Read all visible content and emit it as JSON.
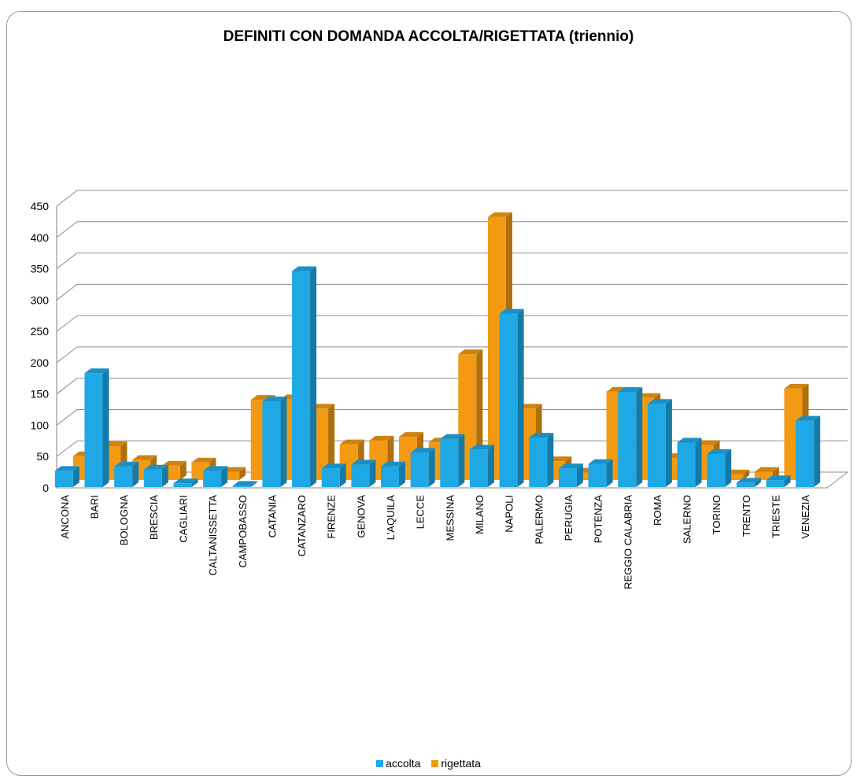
{
  "chart_data": {
    "type": "bar",
    "title": "DEFINITI CON DOMANDA ACCOLTA/RIGETTATA (triennio)",
    "xlabel": "",
    "ylabel": "",
    "ylim": [
      0,
      450
    ],
    "yticks": [
      0,
      50,
      100,
      150,
      200,
      250,
      300,
      350,
      400,
      450
    ],
    "grid": true,
    "legend_position": "bottom",
    "categories": [
      "ANCONA",
      "BARI",
      "BOLOGNA",
      "BRESCIA",
      "CAGLIARI",
      "CALTANISSETTA",
      "CAMPOBASSO",
      "CATANIA",
      "CATANZARO",
      "FIRENZE",
      "GENOVA",
      "L'AQUILA",
      "LECCE",
      "MESSINA",
      "MILANO",
      "NAPOLI",
      "PALERMO",
      "PERUGIA",
      "POTENZA",
      "REGGIO CALABRIA",
      "ROMA",
      "SALERNO",
      "TORINO",
      "TRENTO",
      "TRIESTE",
      "VENEZIA"
    ],
    "series": [
      {
        "name": "accolta",
        "color": "#1ea9e6",
        "values": [
          26,
          182,
          33,
          28,
          6,
          26,
          2,
          137,
          345,
          30,
          36,
          33,
          55,
          77,
          60,
          277,
          79,
          30,
          37,
          152,
          133,
          71,
          53,
          7,
          11,
          106
        ]
      },
      {
        "name": "rigettata",
        "color": "#f39a12",
        "values": [
          38,
          54,
          32,
          23,
          28,
          13,
          128,
          129,
          114,
          57,
          63,
          69,
          60,
          201,
          420,
          114,
          30,
          12,
          141,
          131,
          35,
          56,
          9,
          13,
          146,
          0
        ]
      }
    ]
  }
}
